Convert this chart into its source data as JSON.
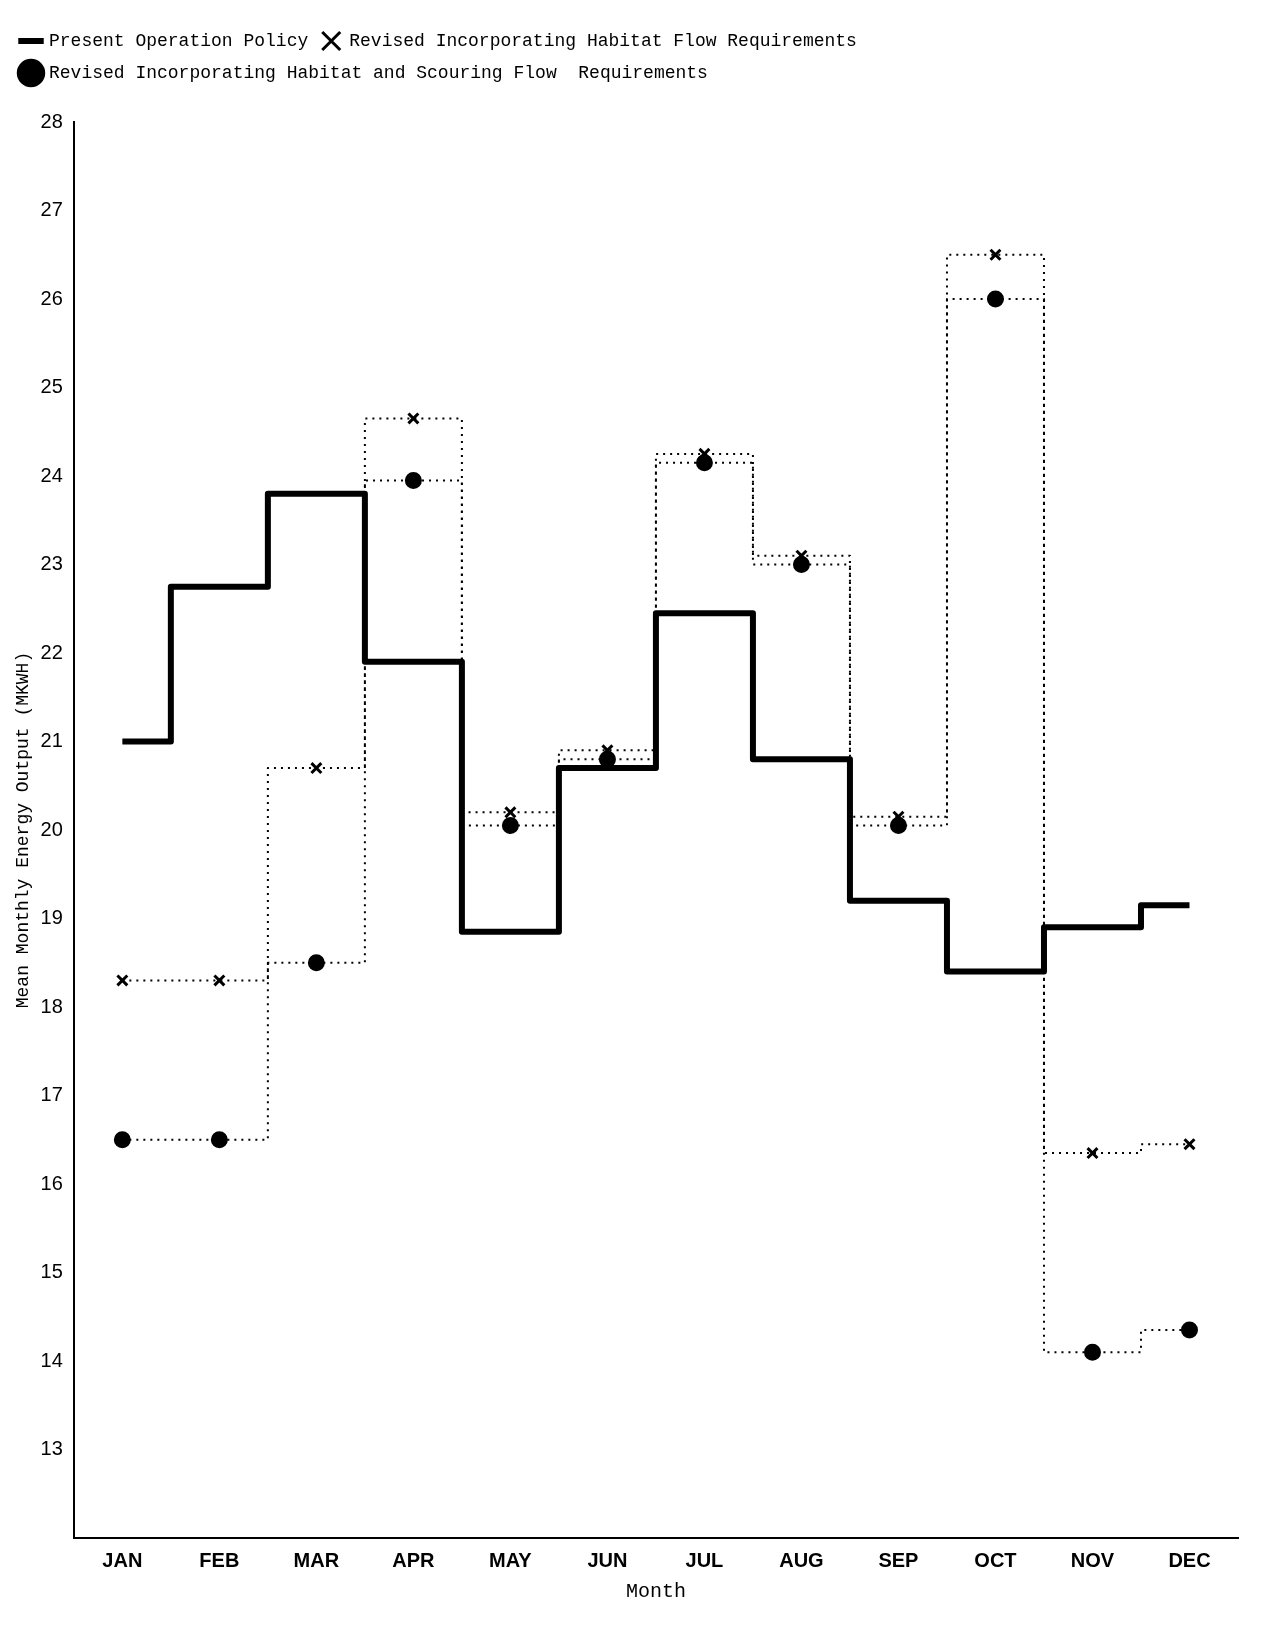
{
  "chart_data": {
    "type": "step",
    "xlabel": "Month",
    "ylabel": "Mean Monthly Energy Output (MKWH)",
    "categories": [
      "JAN",
      "FEB",
      "MAR",
      "APR",
      "MAY",
      "JUN",
      "JUL",
      "AUG",
      "SEP",
      "OCT",
      "NOV",
      "DEC"
    ],
    "series": [
      {
        "name": "Present Operation Policy",
        "color": "#000000",
        "marker": "none",
        "line_style": "solid",
        "values": [
          21.0,
          22.75,
          23.8,
          21.9,
          18.85,
          20.7,
          22.45,
          20.8,
          19.2,
          18.4,
          18.9,
          19.15
        ]
      },
      {
        "name": "Revised Incorporating Habitat Flow Requirements",
        "color": "#000000",
        "marker": "cross",
        "line_style": "dotted",
        "values": [
          18.3,
          18.3,
          20.7,
          24.65,
          20.2,
          20.9,
          24.25,
          23.1,
          20.15,
          26.5,
          16.35,
          16.45
        ]
      },
      {
        "name": "Revised Incorporating Habitat and Scouring Flow  Requirements",
        "color": "#000000",
        "marker": "circle",
        "line_style": "dotted",
        "values": [
          16.5,
          16.5,
          18.5,
          23.95,
          20.05,
          20.8,
          24.15,
          23.0,
          20.05,
          26.0,
          14.1,
          14.35
        ]
      }
    ],
    "ylim": [
      12,
      28
    ],
    "yticks": [
      13,
      14,
      15,
      16,
      17,
      18,
      19,
      20,
      21,
      22,
      23,
      24,
      25,
      26,
      27,
      28
    ],
    "grid": false,
    "legend": "top left"
  }
}
